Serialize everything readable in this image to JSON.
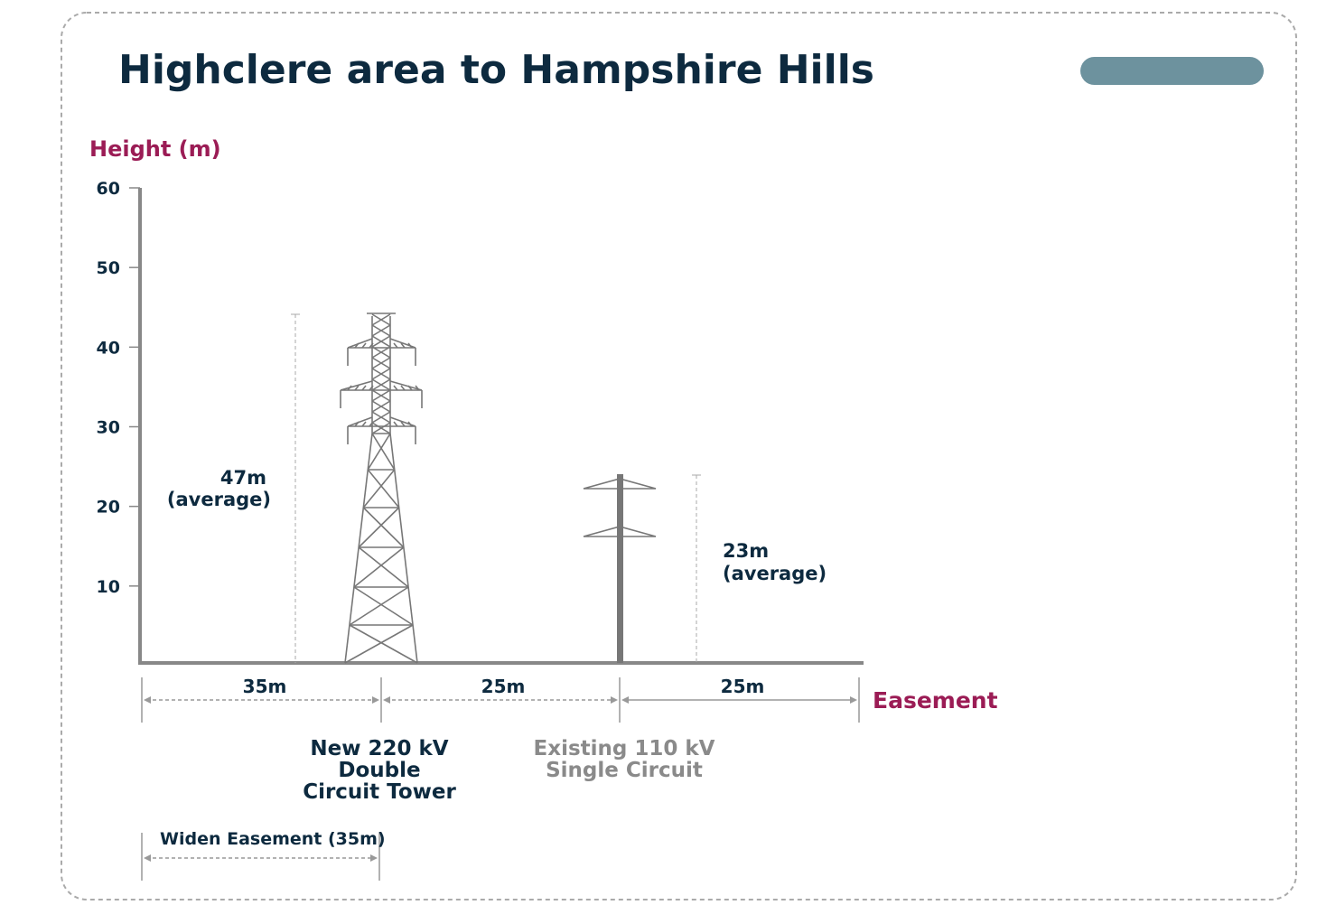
{
  "header": {
    "title": "Highclere area to Hampshire Hills"
  },
  "axis": {
    "label": "Height (m)",
    "ylim": [
      0,
      60
    ],
    "yticks": [
      10,
      20,
      30,
      40,
      50,
      60
    ]
  },
  "towers": [
    {
      "height_label": "47m",
      "height_note": "(average)",
      "name_lines": [
        "New 220 kV",
        "Double",
        "Circuit Tower"
      ]
    },
    {
      "height_label": "23m",
      "height_note": "(average)",
      "name_lines": [
        "Existing 110 kV",
        "Single Circuit"
      ]
    }
  ],
  "spans": [
    "35m",
    "25m",
    "25m"
  ],
  "easement_label": "Easement",
  "widen_label": "Widen Easement (35m)"
}
